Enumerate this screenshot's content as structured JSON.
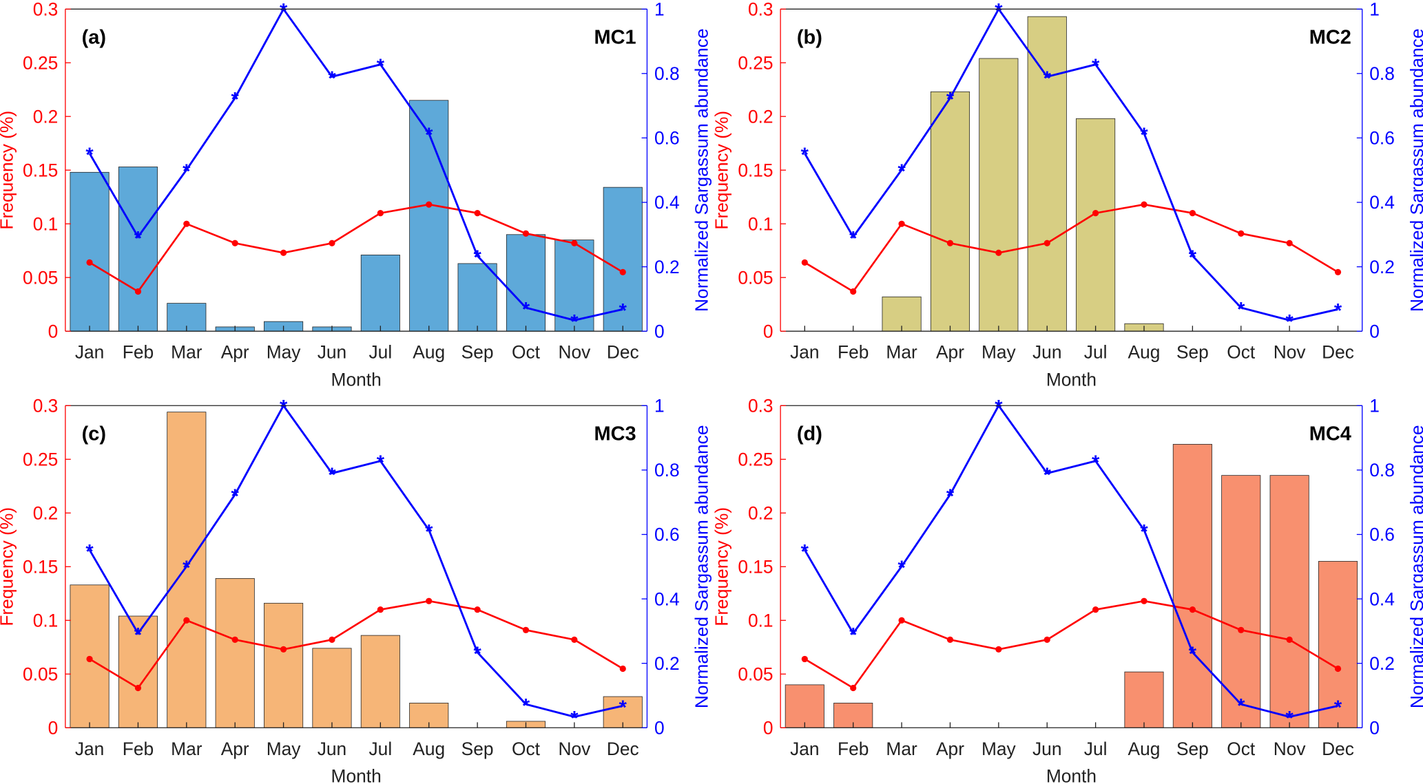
{
  "chart_data": {
    "type": "bar+line",
    "months": [
      "Jan",
      "Feb",
      "Mar",
      "Apr",
      "May",
      "Jun",
      "Jul",
      "Aug",
      "Sep",
      "Oct",
      "Nov",
      "Dec"
    ],
    "xlabel": "Month",
    "ylabel_left": "Frequency (%)",
    "ylabel_right": "Normalized Sargassum abundance",
    "ylim_left": [
      0,
      0.3
    ],
    "yticks_left": [
      "0",
      "0.05",
      "0.1",
      "0.15",
      "0.2",
      "0.25",
      "0.3"
    ],
    "ylim_right": [
      0,
      1
    ],
    "yticks_right": [
      "0",
      "0.2",
      "0.4",
      "0.6",
      "0.8",
      "1"
    ],
    "colors": {
      "left_axis": "#ff0000",
      "right_axis": "#0000ff",
      "frequency_line": "#ff0000",
      "abundance_line": "#0000ff"
    },
    "frequency_line": [
      0.064,
      0.037,
      0.1,
      0.082,
      0.073,
      0.082,
      0.11,
      0.118,
      0.11,
      0.091,
      0.082,
      0.055
    ],
    "abundance_line": [
      0.552,
      0.293,
      0.501,
      0.724,
      1.0,
      0.79,
      0.828,
      0.614,
      0.234,
      0.073,
      0.034,
      0.068
    ],
    "panels": [
      {
        "label": "(a)",
        "title": "MC1",
        "bar_color": "#5ea9d9",
        "bars": [
          0.148,
          0.153,
          0.026,
          0.004,
          0.009,
          0.004,
          0.071,
          0.215,
          0.063,
          0.09,
          0.085,
          0.134
        ]
      },
      {
        "label": "(b)",
        "title": "MC2",
        "bar_color": "#d7ce83",
        "bars": [
          0,
          0,
          0.032,
          0.223,
          0.254,
          0.293,
          0.198,
          0.007,
          0,
          0,
          0,
          0
        ]
      },
      {
        "label": "(c)",
        "title": "MC3",
        "bar_color": "#f6b577",
        "bars": [
          0.133,
          0.104,
          0.294,
          0.139,
          0.116,
          0.074,
          0.086,
          0.023,
          0,
          0.006,
          0,
          0.029
        ]
      },
      {
        "label": "(d)",
        "title": "MC4",
        "bar_color": "#f8906f",
        "bars": [
          0.04,
          0.023,
          0,
          0,
          0,
          0,
          0,
          0.052,
          0.264,
          0.235,
          0.235,
          0.155
        ]
      }
    ]
  }
}
